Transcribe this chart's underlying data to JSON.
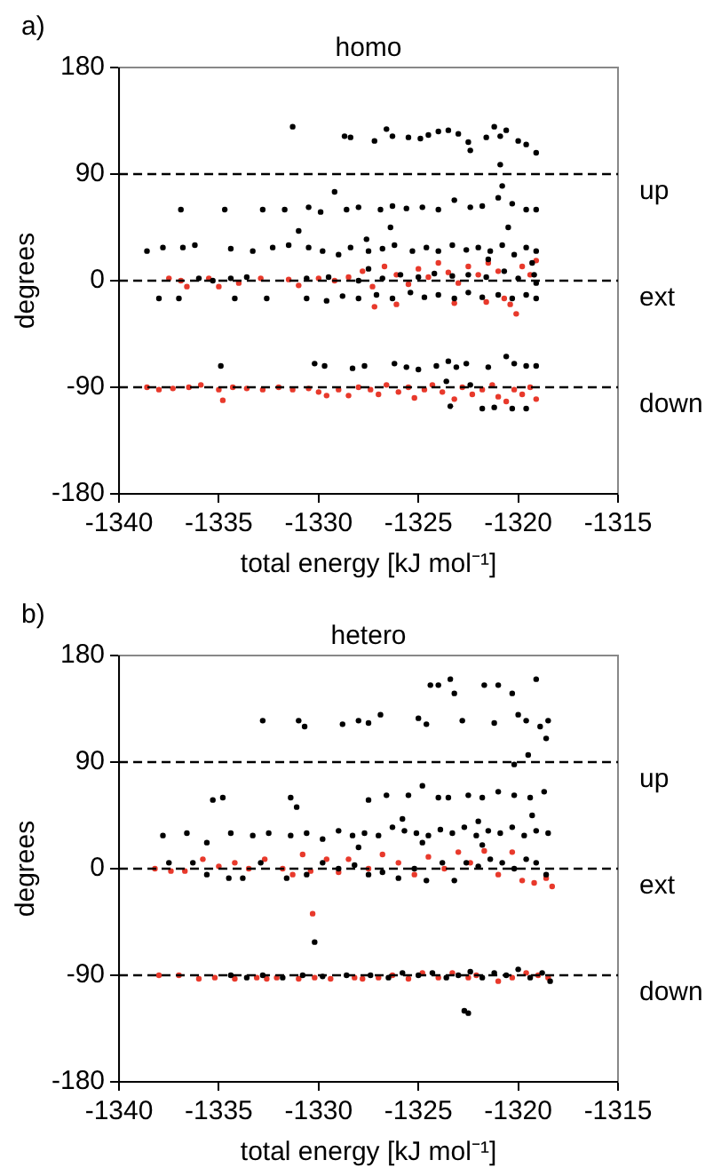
{
  "chart_data": [
    {
      "type": "scatter",
      "title": "homo",
      "xlabel": "total energy [kJ mol⁻¹]",
      "ylabel": "degrees",
      "annotations": [
        "a)"
      ],
      "xlim": [
        -1340,
        -1315
      ],
      "xticks": [
        -1340,
        -1335,
        -1330,
        -1325,
        -1320,
        -1315
      ],
      "ylim": [
        -180,
        180
      ],
      "yticks": [
        -180,
        -90,
        0,
        90,
        180
      ],
      "grid": false,
      "legend": false,
      "marker": "circle",
      "ref_lines": [
        {
          "axis": "y",
          "value": 90,
          "label": "up",
          "color": "#000000",
          "line_style": "dashed"
        },
        {
          "axis": "y",
          "value": 0,
          "label": "ext",
          "color": "#000000",
          "line_style": "dashed"
        },
        {
          "axis": "y",
          "value": -90,
          "label": "down",
          "color": "#000000",
          "line_style": "dashed"
        }
      ],
      "series": [
        {
          "color": "#000000",
          "x": [
            -1331.3,
            -1328.7,
            -1328.4,
            -1327.2,
            -1326.6,
            -1326.3,
            -1325.5,
            -1324.9,
            -1324.5,
            -1324,
            -1323.5,
            -1323,
            -1322.5,
            -1322.4,
            -1321.6,
            -1321.2,
            -1320.9,
            -1320.6,
            -1320.9,
            -1320,
            -1319.6,
            -1319.1,
            -1336.9,
            -1334.7,
            -1332.8,
            -1331.7,
            -1330.5,
            -1329.9,
            -1329.2,
            -1328.6,
            -1328,
            -1326.9,
            -1326.3,
            -1325.6,
            -1324.8,
            -1324,
            -1323.2,
            -1322.4,
            -1321.8,
            -1321,
            -1320.3,
            -1319.6,
            -1319.1,
            -1320.8,
            -1320.5,
            -1331,
            -1326.4,
            -1338.6,
            -1337.8,
            -1336.8,
            -1336.2,
            -1334.4,
            -1333.3,
            -1332.3,
            -1331.5,
            -1330.5,
            -1329.8,
            -1329,
            -1328.4,
            -1327.5,
            -1326.8,
            -1326.2,
            -1325.3,
            -1324.6,
            -1324,
            -1323.3,
            -1322.6,
            -1322,
            -1321.4,
            -1320.8,
            -1320.2,
            -1319.6,
            -1319.1,
            -1327.6,
            -1321.5,
            -1319.3,
            -1327.5,
            -1336,
            -1335.3,
            -1334.4,
            -1333.6,
            -1330.6,
            -1329.5,
            -1328,
            -1326.8,
            -1325.9,
            -1325,
            -1324.2,
            -1323.3,
            -1322.5,
            -1321.6,
            -1320.7,
            -1320,
            -1319.2,
            -1319.1,
            -1338,
            -1337,
            -1334.2,
            -1332.6,
            -1330.6,
            -1329.6,
            -1328.8,
            -1328,
            -1327.1,
            -1326.3,
            -1325.4,
            -1324.7,
            -1324,
            -1323.2,
            -1322.5,
            -1321.8,
            -1321,
            -1320.3,
            -1319.6,
            -1319.1,
            -1334.9,
            -1330.2,
            -1329.7,
            -1328.3,
            -1327.7,
            -1326.2,
            -1325.6,
            -1325,
            -1324.1,
            -1323.5,
            -1323.1,
            -1322.6,
            -1321.5,
            -1320.6,
            -1320.2,
            -1319.6,
            -1319.1,
            -1323.6,
            -1322.4,
            -1323.4,
            -1321.8,
            -1321.2,
            -1320.3,
            -1319.6
          ],
          "values": [
            130,
            122,
            121,
            118,
            128,
            122,
            121,
            120,
            123,
            126,
            127,
            124,
            117,
            110,
            121,
            130,
            122,
            127,
            98,
            118,
            115,
            108,
            60,
            60,
            60,
            60,
            62,
            58,
            75,
            60,
            62,
            60,
            63,
            61,
            62,
            60,
            68,
            62,
            63,
            70,
            65,
            60,
            60,
            80,
            45,
            42,
            45,
            25,
            28,
            28,
            30,
            27,
            25,
            28,
            30,
            28,
            25,
            22,
            28,
            25,
            27,
            30,
            25,
            28,
            25,
            30,
            26,
            28,
            25,
            30,
            22,
            28,
            25,
            35,
            18,
            15,
            10,
            2,
            0,
            2,
            3,
            2,
            3,
            0,
            2,
            5,
            3,
            6,
            4,
            5,
            3,
            8,
            2,
            5,
            -2,
            -15,
            -15,
            -15,
            -15,
            -15,
            -17,
            -13,
            -15,
            -12,
            -15,
            -10,
            -14,
            -12,
            -15,
            -10,
            -14,
            -12,
            -15,
            -12,
            -15,
            -72,
            -70,
            -72,
            -74,
            -72,
            -70,
            -73,
            -75,
            -72,
            -68,
            -73,
            -70,
            -73,
            -64,
            -70,
            -72,
            -72,
            -85,
            -88,
            -106,
            -108,
            -107,
            -108,
            -108
          ]
        },
        {
          "color": "#e8392b",
          "x": [
            -1337.5,
            -1336.9,
            -1335.5,
            -1334,
            -1332.9,
            -1331.5,
            -1330,
            -1329.2,
            -1328.5,
            -1327.8,
            -1327.3,
            -1326.7,
            -1326.1,
            -1325.5,
            -1325,
            -1324.5,
            -1324,
            -1323.5,
            -1323,
            -1322.5,
            -1322,
            -1321.5,
            -1321,
            -1320.7,
            -1320.4,
            -1320.1,
            -1319.8,
            -1319.4,
            -1319.1,
            -1336.6,
            -1335,
            -1331,
            -1327.2,
            -1326.1,
            -1323.2,
            -1321.6,
            -1338.6,
            -1338,
            -1337.3,
            -1336.5,
            -1335.9,
            -1335,
            -1334.8,
            -1334.3,
            -1333.6,
            -1332.8,
            -1332,
            -1331.3,
            -1330.5,
            -1330,
            -1329.6,
            -1329,
            -1328.5,
            -1328,
            -1327.4,
            -1327,
            -1326.6,
            -1326,
            -1325.5,
            -1325.2,
            -1324.7,
            -1324.3,
            -1323.8,
            -1323.2,
            -1322.8,
            -1322.3,
            -1321.8,
            -1321.3,
            -1321,
            -1320.6,
            -1320.2,
            -1319.8,
            -1319.4,
            -1319.1
          ],
          "values": [
            2,
            0,
            2,
            -2,
            2,
            1,
            2,
            0,
            3,
            8,
            -5,
            12,
            5,
            -3,
            10,
            3,
            15,
            7,
            -2,
            12,
            5,
            15,
            8,
            -15,
            -20,
            -28,
            12,
            5,
            17,
            -5,
            -5,
            -4,
            -22,
            -20,
            -19,
            -18,
            -90,
            -92,
            -91,
            -90,
            -88,
            -92,
            -101,
            -90,
            -91,
            -92,
            -90,
            -92,
            -91,
            -94,
            -97,
            -92,
            -97,
            -90,
            -92,
            -96,
            -88,
            -94,
            -90,
            -99,
            -92,
            -88,
            -94,
            -100,
            -90,
            -96,
            -92,
            -88,
            -98,
            -102,
            -92,
            -96,
            -90,
            -100
          ]
        }
      ]
    },
    {
      "type": "scatter",
      "title": "hetero",
      "xlabel": "total energy [kJ mol⁻¹]",
      "ylabel": "degrees",
      "annotations": [
        "b)"
      ],
      "xlim": [
        -1340,
        -1315
      ],
      "xticks": [
        -1340,
        -1335,
        -1330,
        -1325,
        -1320,
        -1315
      ],
      "ylim": [
        -180,
        180
      ],
      "yticks": [
        -180,
        -90,
        0,
        90,
        180
      ],
      "grid": false,
      "legend": false,
      "marker": "circle",
      "ref_lines": [
        {
          "axis": "y",
          "value": 90,
          "label": "up",
          "color": "#000000",
          "line_style": "dashed"
        },
        {
          "axis": "y",
          "value": 0,
          "label": "ext",
          "color": "#000000",
          "line_style": "dashed"
        },
        {
          "axis": "y",
          "value": -90,
          "label": "down",
          "color": "#000000",
          "line_style": "dashed"
        }
      ],
      "series": [
        {
          "color": "#000000",
          "x": [
            -1332.8,
            -1331,
            -1330.7,
            -1328.8,
            -1328,
            -1327.5,
            -1326.9,
            -1325,
            -1324.6,
            -1324.4,
            -1324,
            -1323.4,
            -1323.2,
            -1322.8,
            -1321.7,
            -1321.2,
            -1321,
            -1320.3,
            -1320,
            -1319.6,
            -1319.1,
            -1318.9,
            -1318.5,
            -1318.6,
            -1319.5,
            -1320.2,
            -1335.3,
            -1334.8,
            -1331.4,
            -1331.1,
            -1327.5,
            -1326.6,
            -1325.5,
            -1324.8,
            -1324,
            -1323.5,
            -1322.5,
            -1321.8,
            -1321,
            -1320.2,
            -1319.4,
            -1318.7,
            -1337.8,
            -1336.6,
            -1335.6,
            -1334.4,
            -1333.3,
            -1332.5,
            -1331.4,
            -1330.6,
            -1329.8,
            -1329,
            -1328.3,
            -1327.7,
            -1327,
            -1326.3,
            -1325.7,
            -1325.1,
            -1324.5,
            -1323.9,
            -1323.3,
            -1322.7,
            -1322.1,
            -1321.5,
            -1320.9,
            -1320.3,
            -1319.7,
            -1319.1,
            -1318.5,
            -1325.8,
            -1322,
            -1319.3,
            -1328,
            -1324.8,
            -1321.8,
            -1337.5,
            -1336.3,
            -1335.6,
            -1334.5,
            -1333.8,
            -1332.9,
            -1331.6,
            -1330.6,
            -1329.8,
            -1329,
            -1328.2,
            -1327.5,
            -1326.8,
            -1326,
            -1325.2,
            -1324.6,
            -1323.8,
            -1323.2,
            -1322.6,
            -1322,
            -1321.4,
            -1320.8,
            -1320.2,
            -1319.6,
            -1319.1,
            -1318.6,
            -1330.2,
            -1334.4,
            -1333.6,
            -1332.8,
            -1331.8,
            -1330.8,
            -1329.8,
            -1328.6,
            -1327.4,
            -1326.5,
            -1325.8,
            -1325,
            -1324.3,
            -1323.6,
            -1323,
            -1322.4,
            -1321.8,
            -1321.2,
            -1320.6,
            -1320,
            -1319.4,
            -1318.8,
            -1318.4,
            -1322.7,
            -1322.5
          ],
          "values": [
            125,
            125,
            120,
            122,
            125,
            123,
            130,
            127,
            122,
            155,
            155,
            160,
            148,
            125,
            155,
            123,
            155,
            148,
            130,
            125,
            160,
            120,
            125,
            110,
            96,
            88,
            58,
            60,
            60,
            52,
            58,
            62,
            62,
            70,
            60,
            60,
            62,
            60,
            65,
            62,
            60,
            65,
            28,
            30,
            22,
            30,
            28,
            30,
            28,
            30,
            25,
            32,
            28,
            30,
            28,
            35,
            32,
            30,
            28,
            33,
            30,
            35,
            28,
            32,
            30,
            35,
            28,
            32,
            30,
            42,
            40,
            45,
            18,
            22,
            20,
            5,
            5,
            -5,
            -8,
            -8,
            5,
            -8,
            -5,
            5,
            0,
            3,
            -5,
            -3,
            -8,
            0,
            -10,
            5,
            -10,
            5,
            2,
            8,
            5,
            0,
            8,
            5,
            -5,
            -62,
            -90,
            -92,
            -90,
            -92,
            -90,
            -91,
            -90,
            -90,
            -92,
            -88,
            -90,
            -88,
            -92,
            -90,
            -87,
            -92,
            -88,
            -90,
            -85,
            -92,
            -88,
            -95,
            -120,
            -122
          ]
        },
        {
          "color": "#e8392b",
          "x": [
            -1338.2,
            -1337.4,
            -1336.7,
            -1335.8,
            -1335,
            -1334.2,
            -1333.5,
            -1332.7,
            -1331.8,
            -1331.3,
            -1330.8,
            -1330.4,
            -1329.6,
            -1329,
            -1328.5,
            -1327.5,
            -1326.8,
            -1326,
            -1325.2,
            -1324.5,
            -1323.7,
            -1323,
            -1322.4,
            -1321.7,
            -1321,
            -1320.3,
            -1319.8,
            -1319.2,
            -1318.6,
            -1318.3,
            -1330.3,
            -1338,
            -1337,
            -1336,
            -1335.2,
            -1334.2,
            -1333.1,
            -1332.6,
            -1332.1,
            -1331,
            -1330.2,
            -1329.4,
            -1328.2,
            -1327.8,
            -1327,
            -1326.3,
            -1325.5,
            -1324.8,
            -1324,
            -1323.3,
            -1322.5,
            -1322.1,
            -1321,
            -1320.3,
            -1319.6,
            -1319,
            -1318.5
          ],
          "values": [
            0,
            -2,
            -2,
            8,
            2,
            5,
            0,
            8,
            0,
            -5,
            12,
            -2,
            8,
            -3,
            8,
            0,
            12,
            5,
            -5,
            10,
            0,
            14,
            5,
            15,
            -5,
            14,
            -10,
            -12,
            -8,
            -15,
            -38,
            -90,
            -90,
            -93,
            -92,
            -93,
            -92,
            -93,
            -92,
            -93,
            -92,
            -93,
            -92,
            -93,
            -92,
            -90,
            -93,
            -88,
            -92,
            -88,
            -92,
            -90,
            -95,
            -92,
            -88,
            -90,
            -92
          ]
        }
      ]
    }
  ]
}
